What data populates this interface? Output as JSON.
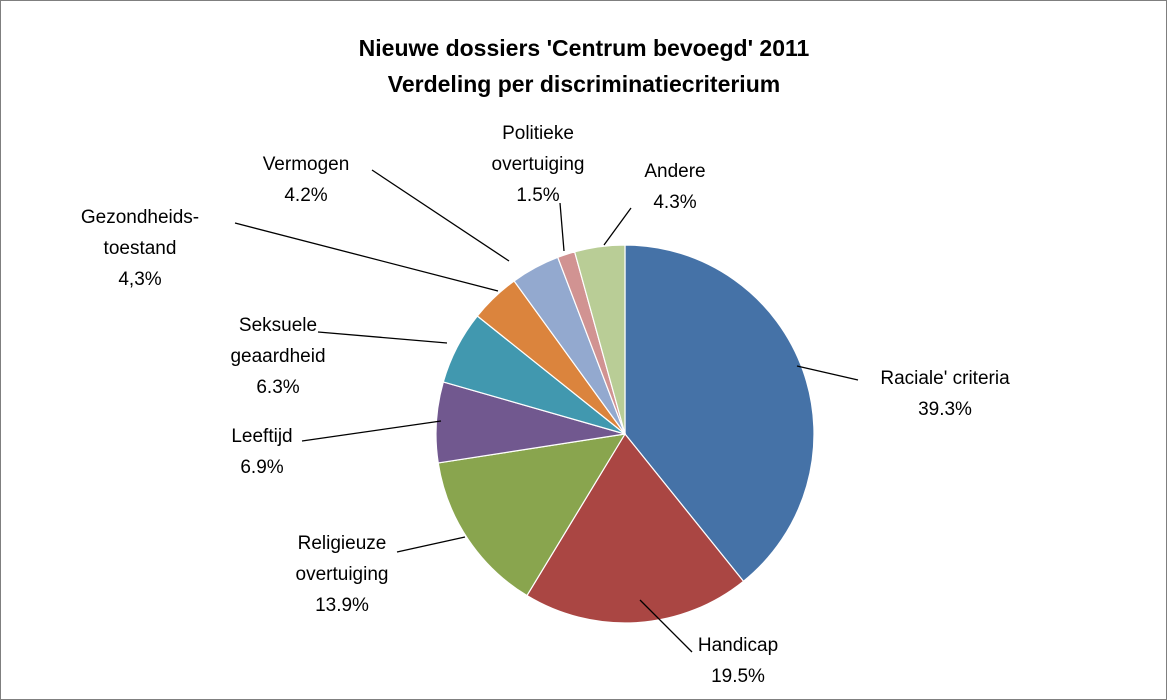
{
  "chart_data": {
    "type": "pie",
    "title_lines": [
      "Nieuwe dossiers 'Centrum bevoegd' 2011",
      "Verdeling per discriminatiecriterium"
    ],
    "start_angle_deg": 0,
    "direction": "clockwise",
    "legend": "none",
    "slices": [
      {
        "label_lines": [
          "Raciale' criteria"
        ],
        "value_text": "39.3%",
        "value": 39.3,
        "color": "#4572A7"
      },
      {
        "label_lines": [
          "Handicap"
        ],
        "value_text": "19.5%",
        "value": 19.5,
        "color": "#AA4643"
      },
      {
        "label_lines": [
          "Religieuze",
          "overtuiging"
        ],
        "value_text": "13.9%",
        "value": 13.9,
        "color": "#89A54E"
      },
      {
        "label_lines": [
          "Leeftijd"
        ],
        "value_text": "6.9%",
        "value": 6.9,
        "color": "#71588F"
      },
      {
        "label_lines": [
          "Seksuele",
          "geaardheid"
        ],
        "value_text": "6.3%",
        "value": 6.3,
        "color": "#4198AF"
      },
      {
        "label_lines": [
          "Gezondheids-",
          "toestand"
        ],
        "value_text": "4,3%",
        "value": 4.3,
        "color": "#DB843D"
      },
      {
        "label_lines": [
          "Vermogen"
        ],
        "value_text": "4.2%",
        "value": 4.2,
        "color": "#93A9CF"
      },
      {
        "label_lines": [
          "Politieke",
          "overtuiging"
        ],
        "value_text": "1.5%",
        "value": 1.5,
        "color": "#D19392"
      },
      {
        "label_lines": [
          "Andere"
        ],
        "value_text": "4.3%",
        "value": 4.3,
        "color": "#B9CD96"
      }
    ]
  }
}
